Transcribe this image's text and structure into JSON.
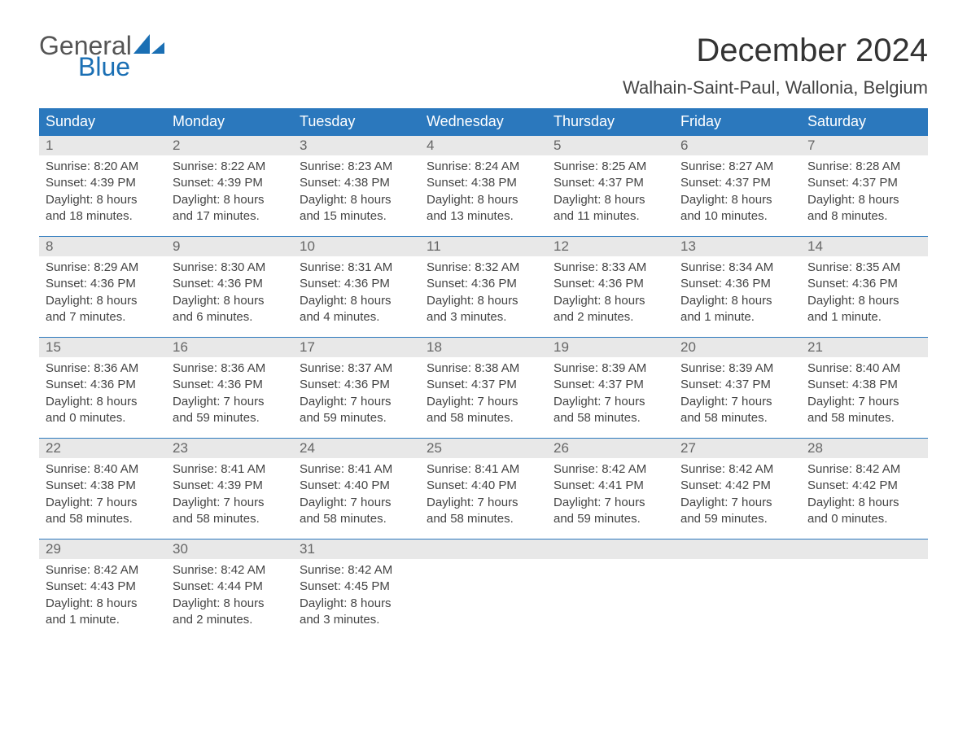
{
  "brand": {
    "part1": "General",
    "part2": "Blue",
    "text_color": "#555555",
    "accent_color": "#1a6fb4"
  },
  "title": "December 2024",
  "location": "Walhain-Saint-Paul, Wallonia, Belgium",
  "colors": {
    "header_bg": "#2b78bd",
    "header_text": "#ffffff",
    "daynum_bg": "#e8e8e8",
    "week_border": "#2b78bd",
    "body_text": "#444444",
    "background": "#ffffff"
  },
  "day_headers": [
    "Sunday",
    "Monday",
    "Tuesday",
    "Wednesday",
    "Thursday",
    "Friday",
    "Saturday"
  ],
  "weeks": [
    [
      {
        "n": "1",
        "sunrise": "Sunrise: 8:20 AM",
        "sunset": "Sunset: 4:39 PM",
        "dl1": "Daylight: 8 hours",
        "dl2": "and 18 minutes."
      },
      {
        "n": "2",
        "sunrise": "Sunrise: 8:22 AM",
        "sunset": "Sunset: 4:39 PM",
        "dl1": "Daylight: 8 hours",
        "dl2": "and 17 minutes."
      },
      {
        "n": "3",
        "sunrise": "Sunrise: 8:23 AM",
        "sunset": "Sunset: 4:38 PM",
        "dl1": "Daylight: 8 hours",
        "dl2": "and 15 minutes."
      },
      {
        "n": "4",
        "sunrise": "Sunrise: 8:24 AM",
        "sunset": "Sunset: 4:38 PM",
        "dl1": "Daylight: 8 hours",
        "dl2": "and 13 minutes."
      },
      {
        "n": "5",
        "sunrise": "Sunrise: 8:25 AM",
        "sunset": "Sunset: 4:37 PM",
        "dl1": "Daylight: 8 hours",
        "dl2": "and 11 minutes."
      },
      {
        "n": "6",
        "sunrise": "Sunrise: 8:27 AM",
        "sunset": "Sunset: 4:37 PM",
        "dl1": "Daylight: 8 hours",
        "dl2": "and 10 minutes."
      },
      {
        "n": "7",
        "sunrise": "Sunrise: 8:28 AM",
        "sunset": "Sunset: 4:37 PM",
        "dl1": "Daylight: 8 hours",
        "dl2": "and 8 minutes."
      }
    ],
    [
      {
        "n": "8",
        "sunrise": "Sunrise: 8:29 AM",
        "sunset": "Sunset: 4:36 PM",
        "dl1": "Daylight: 8 hours",
        "dl2": "and 7 minutes."
      },
      {
        "n": "9",
        "sunrise": "Sunrise: 8:30 AM",
        "sunset": "Sunset: 4:36 PM",
        "dl1": "Daylight: 8 hours",
        "dl2": "and 6 minutes."
      },
      {
        "n": "10",
        "sunrise": "Sunrise: 8:31 AM",
        "sunset": "Sunset: 4:36 PM",
        "dl1": "Daylight: 8 hours",
        "dl2": "and 4 minutes."
      },
      {
        "n": "11",
        "sunrise": "Sunrise: 8:32 AM",
        "sunset": "Sunset: 4:36 PM",
        "dl1": "Daylight: 8 hours",
        "dl2": "and 3 minutes."
      },
      {
        "n": "12",
        "sunrise": "Sunrise: 8:33 AM",
        "sunset": "Sunset: 4:36 PM",
        "dl1": "Daylight: 8 hours",
        "dl2": "and 2 minutes."
      },
      {
        "n": "13",
        "sunrise": "Sunrise: 8:34 AM",
        "sunset": "Sunset: 4:36 PM",
        "dl1": "Daylight: 8 hours",
        "dl2": "and 1 minute."
      },
      {
        "n": "14",
        "sunrise": "Sunrise: 8:35 AM",
        "sunset": "Sunset: 4:36 PM",
        "dl1": "Daylight: 8 hours",
        "dl2": "and 1 minute."
      }
    ],
    [
      {
        "n": "15",
        "sunrise": "Sunrise: 8:36 AM",
        "sunset": "Sunset: 4:36 PM",
        "dl1": "Daylight: 8 hours",
        "dl2": "and 0 minutes."
      },
      {
        "n": "16",
        "sunrise": "Sunrise: 8:36 AM",
        "sunset": "Sunset: 4:36 PM",
        "dl1": "Daylight: 7 hours",
        "dl2": "and 59 minutes."
      },
      {
        "n": "17",
        "sunrise": "Sunrise: 8:37 AM",
        "sunset": "Sunset: 4:36 PM",
        "dl1": "Daylight: 7 hours",
        "dl2": "and 59 minutes."
      },
      {
        "n": "18",
        "sunrise": "Sunrise: 8:38 AM",
        "sunset": "Sunset: 4:37 PM",
        "dl1": "Daylight: 7 hours",
        "dl2": "and 58 minutes."
      },
      {
        "n": "19",
        "sunrise": "Sunrise: 8:39 AM",
        "sunset": "Sunset: 4:37 PM",
        "dl1": "Daylight: 7 hours",
        "dl2": "and 58 minutes."
      },
      {
        "n": "20",
        "sunrise": "Sunrise: 8:39 AM",
        "sunset": "Sunset: 4:37 PM",
        "dl1": "Daylight: 7 hours",
        "dl2": "and 58 minutes."
      },
      {
        "n": "21",
        "sunrise": "Sunrise: 8:40 AM",
        "sunset": "Sunset: 4:38 PM",
        "dl1": "Daylight: 7 hours",
        "dl2": "and 58 minutes."
      }
    ],
    [
      {
        "n": "22",
        "sunrise": "Sunrise: 8:40 AM",
        "sunset": "Sunset: 4:38 PM",
        "dl1": "Daylight: 7 hours",
        "dl2": "and 58 minutes."
      },
      {
        "n": "23",
        "sunrise": "Sunrise: 8:41 AM",
        "sunset": "Sunset: 4:39 PM",
        "dl1": "Daylight: 7 hours",
        "dl2": "and 58 minutes."
      },
      {
        "n": "24",
        "sunrise": "Sunrise: 8:41 AM",
        "sunset": "Sunset: 4:40 PM",
        "dl1": "Daylight: 7 hours",
        "dl2": "and 58 minutes."
      },
      {
        "n": "25",
        "sunrise": "Sunrise: 8:41 AM",
        "sunset": "Sunset: 4:40 PM",
        "dl1": "Daylight: 7 hours",
        "dl2": "and 58 minutes."
      },
      {
        "n": "26",
        "sunrise": "Sunrise: 8:42 AM",
        "sunset": "Sunset: 4:41 PM",
        "dl1": "Daylight: 7 hours",
        "dl2": "and 59 minutes."
      },
      {
        "n": "27",
        "sunrise": "Sunrise: 8:42 AM",
        "sunset": "Sunset: 4:42 PM",
        "dl1": "Daylight: 7 hours",
        "dl2": "and 59 minutes."
      },
      {
        "n": "28",
        "sunrise": "Sunrise: 8:42 AM",
        "sunset": "Sunset: 4:42 PM",
        "dl1": "Daylight: 8 hours",
        "dl2": "and 0 minutes."
      }
    ],
    [
      {
        "n": "29",
        "sunrise": "Sunrise: 8:42 AM",
        "sunset": "Sunset: 4:43 PM",
        "dl1": "Daylight: 8 hours",
        "dl2": "and 1 minute."
      },
      {
        "n": "30",
        "sunrise": "Sunrise: 8:42 AM",
        "sunset": "Sunset: 4:44 PM",
        "dl1": "Daylight: 8 hours",
        "dl2": "and 2 minutes."
      },
      {
        "n": "31",
        "sunrise": "Sunrise: 8:42 AM",
        "sunset": "Sunset: 4:45 PM",
        "dl1": "Daylight: 8 hours",
        "dl2": "and 3 minutes."
      },
      {
        "empty": true
      },
      {
        "empty": true
      },
      {
        "empty": true
      },
      {
        "empty": true
      }
    ]
  ]
}
